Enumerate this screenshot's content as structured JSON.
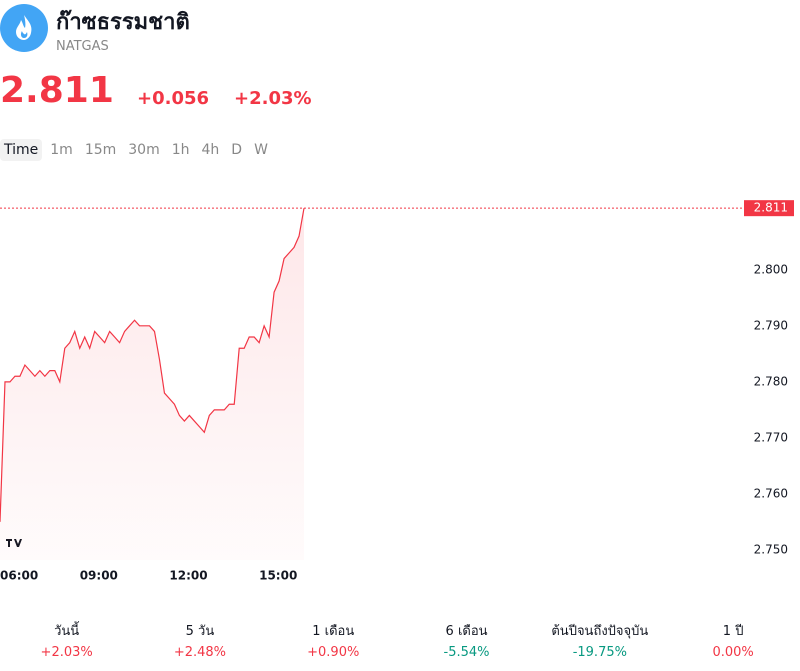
{
  "header": {
    "title": "ก๊าซธรรมชาติ",
    "symbol": "NATGAS",
    "price": "2.811",
    "change": "+0.056",
    "change_pct": "+2.03%"
  },
  "tabs": [
    "Time",
    "1m",
    "15m",
    "30m",
    "1h",
    "4h",
    "D",
    "W"
  ],
  "chart_data": {
    "type": "line",
    "color": "#f23645",
    "x": [
      "06:00",
      "06:10",
      "06:20",
      "06:30",
      "06:40",
      "06:50",
      "07:00",
      "07:10",
      "07:20",
      "07:30",
      "07:40",
      "07:50",
      "08:00",
      "08:10",
      "08:20",
      "08:30",
      "08:40",
      "08:50",
      "09:00",
      "09:10",
      "09:20",
      "09:30",
      "09:40",
      "09:50",
      "10:00",
      "10:10",
      "10:20",
      "10:30",
      "10:40",
      "10:50",
      "11:00",
      "11:10",
      "11:20",
      "11:30",
      "11:40",
      "11:50",
      "12:00",
      "12:10",
      "12:20",
      "12:30",
      "12:40",
      "12:50",
      "13:00",
      "13:10",
      "13:20",
      "13:30",
      "13:40",
      "13:50",
      "14:00",
      "14:10",
      "14:20",
      "14:30",
      "14:40",
      "14:50",
      "15:00",
      "15:10",
      "15:20",
      "15:30",
      "15:40",
      "15:50",
      "16:00",
      "16:10"
    ],
    "values": [
      2.755,
      2.78,
      2.78,
      2.781,
      2.781,
      2.783,
      2.782,
      2.781,
      2.782,
      2.781,
      2.782,
      2.782,
      2.78,
      2.786,
      2.787,
      2.789,
      2.786,
      2.788,
      2.786,
      2.789,
      2.788,
      2.787,
      2.789,
      2.788,
      2.787,
      2.789,
      2.79,
      2.791,
      2.79,
      2.79,
      2.79,
      2.789,
      2.784,
      2.778,
      2.777,
      2.776,
      2.774,
      2.773,
      2.774,
      2.773,
      2.772,
      2.771,
      2.774,
      2.775,
      2.775,
      2.775,
      2.776,
      2.776,
      2.786,
      2.786,
      2.788,
      2.788,
      2.787,
      2.79,
      2.788,
      2.796,
      2.798,
      2.802,
      2.803,
      2.804,
      2.806,
      2.811
    ],
    "xlim": [
      "06:00",
      "16:10"
    ],
    "xticks": [
      "06:00",
      "09:00",
      "12:00",
      "15:00"
    ],
    "ylim": [
      2.7482,
      2.8146
    ],
    "yticks": [
      {
        "value": 2.75,
        "label": "2.750"
      },
      {
        "value": 2.76,
        "label": "2.760"
      },
      {
        "value": 2.77,
        "label": "2.770"
      },
      {
        "value": 2.78,
        "label": "2.780"
      },
      {
        "value": 2.79,
        "label": "2.790"
      },
      {
        "value": 2.8,
        "label": "2.800"
      }
    ],
    "price_line": 2.811
  },
  "stats": [
    {
      "label": "วันนี้",
      "value": "+2.03%",
      "color": "#f23645"
    },
    {
      "label": "5 วัน",
      "value": "+2.48%",
      "color": "#f23645"
    },
    {
      "label": "1 เดือน",
      "value": "+0.90%",
      "color": "#f23645"
    },
    {
      "label": "6 เดือน",
      "value": "-5.54%",
      "color": "#089981"
    },
    {
      "label": "ต้นปีจนถึงปัจจุบัน",
      "value": "-19.75%",
      "color": "#089981"
    },
    {
      "label": "1 ปี",
      "value": "0.00%",
      "color": "#f23645"
    }
  ]
}
